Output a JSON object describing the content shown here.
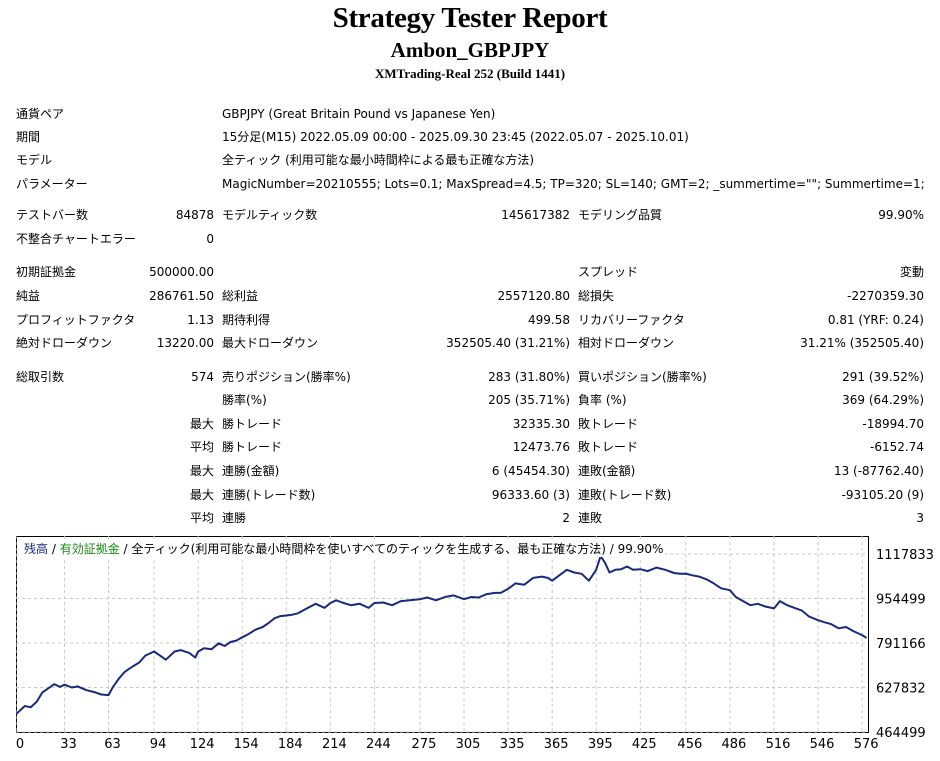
{
  "header": {
    "title": "Strategy Tester Report",
    "subtitle": "Ambon_GBPJPY",
    "account": "XMTrading-Real 252 (Build 1441)"
  },
  "info": {
    "symbol_label": "通貨ペア",
    "symbol_value": "GBPJPY (Great Britain Pound vs Japanese Yen)",
    "period_label": "期間",
    "period_value": "15分足(M15) 2022.05.09 00:00 - 2025.09.30 23:45 (2022.05.07 - 2025.10.01)",
    "model_label": "モデル",
    "model_value": "全ティック (利用可能な最小時間枠による最も正確な方法)",
    "params_label": "パラメーター",
    "params_value": "MagicNumber=20210555; Lots=0.1; MaxSpread=4.5; TP=320; SL=140; GMT=2; _summertime=\"\"; Summertime=1;"
  },
  "stats": {
    "bars_label": "テストバー数",
    "bars_value": "84878",
    "ticks_label": "モデルティック数",
    "ticks_value": "145617382",
    "quality_label": "モデリング品質",
    "quality_value": "99.90%",
    "errors_label": "不整合チャートエラー",
    "errors_value": "0",
    "deposit_label": "初期証拠金",
    "deposit_value": "500000.00",
    "spread_label": "スプレッド",
    "spread_value": "変動",
    "netprofit_label": "純益",
    "netprofit_value": "286761.50",
    "grossprofit_label": "総利益",
    "grossprofit_value": "2557120.80",
    "grossloss_label": "総損失",
    "grossloss_value": "-2270359.30",
    "pf_label": "プロフィットファクタ",
    "pf_value": "1.13",
    "expected_label": "期待利得",
    "expected_value": "499.58",
    "recovery_label": "リカバリーファクタ",
    "recovery_value": "0.81 (YRF: 0.24)",
    "absdd_label": "絶対ドローダウン",
    "absdd_value": "13220.00",
    "maxdd_label": "最大ドローダウン",
    "maxdd_value": "352505.40 (31.21%)",
    "reldd_label": "相対ドローダウン",
    "reldd_value": "31.21% (352505.40)",
    "trades_label": "総取引数",
    "trades_value": "574",
    "short_label": "売りポジション(勝率%)",
    "short_value": "283 (31.80%)",
    "long_label": "買いポジション(勝率%)",
    "long_value": "291 (39.52%)",
    "winrate_label": "勝率(%)",
    "winrate_value": "205 (35.71%)",
    "lossrate_label": "負率 (%)",
    "lossrate_value": "369 (64.29%)",
    "max_label": "最大",
    "avg_label": "平均",
    "largest_win_label": "勝トレード",
    "largest_win_value": "32335.30",
    "largest_loss_label": "敗トレード",
    "largest_loss_value": "-18994.70",
    "avg_win_label": "勝トレード",
    "avg_win_value": "12473.76",
    "avg_loss_label": "敗トレード",
    "avg_loss_value": "-6152.74",
    "max_consec_win_label": "連勝(金額)",
    "max_consec_win_value": "6 (45454.30)",
    "max_consec_loss_label": "連敗(金額)",
    "max_consec_loss_value": "13 (-87762.40)",
    "max_consec_profit_label": "連勝(トレード数)",
    "max_consec_profit_value": "96333.60 (3)",
    "max_consec_lossamt_label": "連敗(トレード数)",
    "max_consec_lossamt_value": "-93105.20 (9)",
    "avg_consec_win_label": "連勝",
    "avg_consec_win_value": "2",
    "avg_consec_loss_label": "連敗",
    "avg_consec_loss_value": "3"
  },
  "chart_legend": {
    "balance": "残高",
    "sep1": " / ",
    "equity": "有効証拠金",
    "rest": " / 全ティック(利用可能な最小時間枠を使いすべてのティックを生成する、最も正確な方法) / 99.90%"
  },
  "colors": {
    "balance": "#1a2a7a",
    "equity": "#1a8a1a",
    "grid": "#c8c8c8"
  },
  "chart_data": {
    "type": "line",
    "x_ticks": [
      "0",
      "33",
      "63",
      "94",
      "124",
      "154",
      "184",
      "214",
      "244",
      "275",
      "305",
      "335",
      "365",
      "395",
      "425",
      "456",
      "486",
      "516",
      "546",
      "576"
    ],
    "y_ticks": [
      "1117833",
      "954499",
      "791166",
      "627832",
      "464499"
    ],
    "ylim": [
      464499,
      1117833
    ],
    "xlim": [
      0,
      580
    ],
    "series": [
      {
        "x": [
          0,
          3,
          6,
          10,
          14,
          18,
          22,
          26,
          30,
          33,
          38,
          42,
          48,
          54,
          58,
          63,
          66,
          70,
          74,
          78,
          84,
          88,
          94,
          98,
          102,
          108,
          112,
          118,
          122,
          124,
          128,
          133,
          138,
          142,
          146,
          150,
          154,
          158,
          163,
          168,
          172,
          176,
          180,
          184,
          188,
          192,
          198,
          204,
          210,
          214,
          218,
          222,
          228,
          234,
          240,
          244,
          250,
          256,
          262,
          268,
          275,
          280,
          286,
          292,
          298,
          305,
          310,
          315,
          320,
          326,
          330,
          335,
          340,
          346,
          352,
          358,
          362,
          365,
          370,
          375,
          380,
          385,
          390,
          395,
          398,
          401,
          404,
          408,
          412,
          416,
          420,
          425,
          430,
          436,
          442,
          448,
          452,
          456,
          460,
          465,
          470,
          475,
          480,
          486,
          490,
          495,
          500,
          505,
          510,
          516,
          520,
          525,
          530,
          535,
          540,
          546,
          550,
          555,
          560,
          565,
          570,
          576,
          579
        ],
        "values": [
          530000,
          545000,
          560000,
          555000,
          575000,
          610000,
          625000,
          640000,
          630000,
          638000,
          628000,
          632000,
          618000,
          610000,
          602000,
          600000,
          630000,
          660000,
          685000,
          700000,
          720000,
          745000,
          760000,
          745000,
          730000,
          760000,
          765000,
          755000,
          738000,
          760000,
          772000,
          768000,
          790000,
          780000,
          795000,
          800000,
          812000,
          823000,
          840000,
          850000,
          865000,
          882000,
          890000,
          892000,
          895000,
          900000,
          918000,
          935000,
          920000,
          938000,
          948000,
          940000,
          930000,
          935000,
          920000,
          938000,
          940000,
          930000,
          945000,
          948000,
          952000,
          958000,
          948000,
          960000,
          966000,
          952000,
          960000,
          958000,
          970000,
          975000,
          975000,
          990000,
          1010000,
          1005000,
          1030000,
          1035000,
          1030000,
          1020000,
          1040000,
          1060000,
          1050000,
          1045000,
          1020000,
          1060000,
          1110000,
          1085000,
          1050000,
          1060000,
          1062000,
          1072000,
          1060000,
          1062000,
          1055000,
          1068000,
          1060000,
          1048000,
          1045000,
          1046000,
          1040000,
          1035000,
          1025000,
          1010000,
          992000,
          985000,
          960000,
          945000,
          930000,
          935000,
          925000,
          918000,
          945000,
          930000,
          920000,
          910000,
          888000,
          875000,
          868000,
          860000,
          845000,
          850000,
          835000,
          820000,
          810000
        ]
      }
    ]
  }
}
